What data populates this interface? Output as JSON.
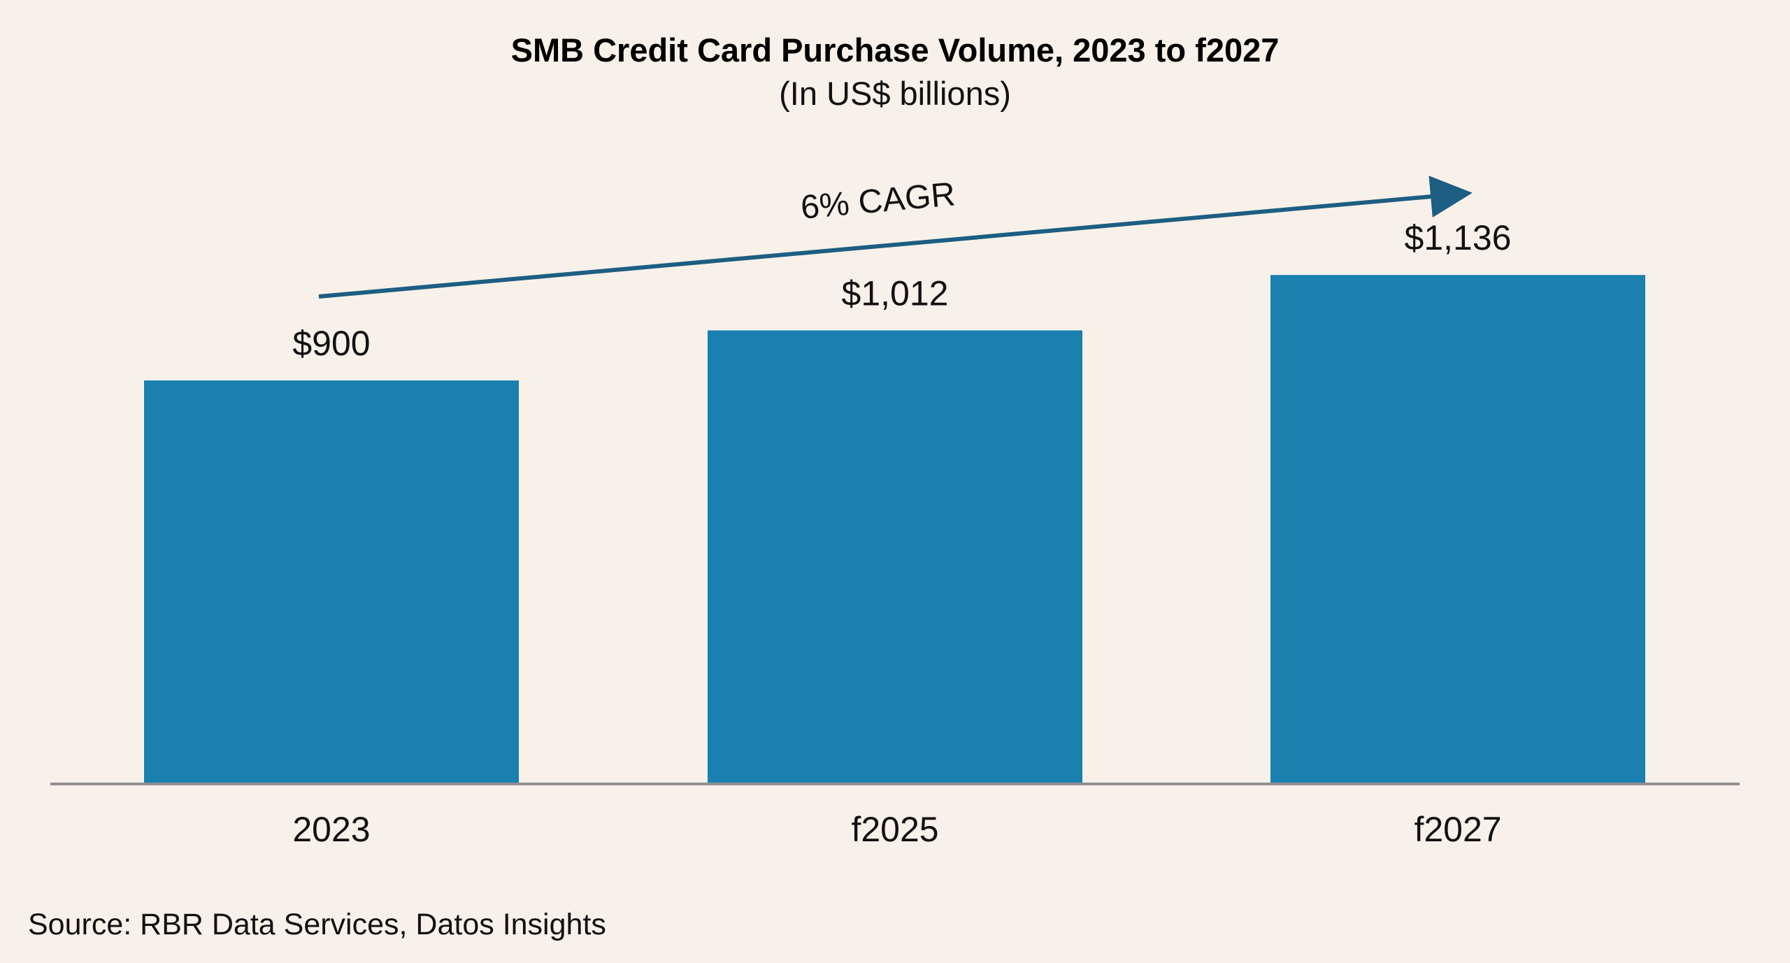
{
  "chart_data": {
    "type": "bar",
    "title": "SMB Credit Card Purchase Volume, 2023 to f2027",
    "subtitle": "(In US$ billions)",
    "categories": [
      "2023",
      "f2025",
      "f2027"
    ],
    "values": [
      900,
      1012,
      1136
    ],
    "value_labels": [
      "$900",
      "$1,012",
      "$1,136"
    ],
    "xlabel": "",
    "ylabel": "",
    "ylim": [
      0,
      1750
    ],
    "grid": false,
    "annotation": {
      "text": "6% CAGR",
      "type": "arrow"
    },
    "source": "Source: RBR Data Services, Datos Insights",
    "colors": {
      "bar": "#1A80B0",
      "arrow": "#1D5E82",
      "axis": "#8F8F8F",
      "background": "#F8F1EA"
    }
  }
}
